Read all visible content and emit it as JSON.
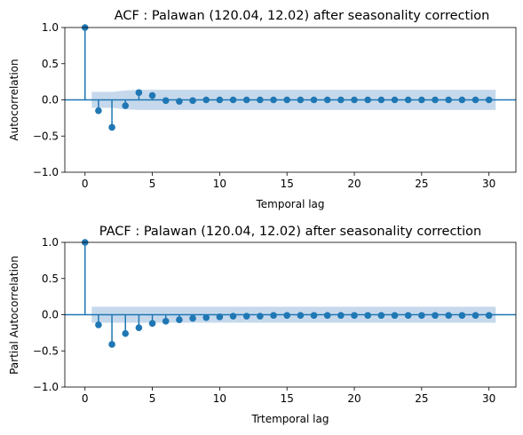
{
  "colors": {
    "stem": "#1f77b4",
    "band": "#c6d9ec",
    "axis": "#000000"
  },
  "chart_data": [
    {
      "type": "stem",
      "title": "ACF : Palawan (120.04, 12.02) after seasonality correction",
      "xlabel": "Temporal lag",
      "ylabel": "Autocorrelation",
      "xlim": [
        -1.5,
        32
      ],
      "ylim": [
        -1.0,
        1.0
      ],
      "xticks": [
        0,
        5,
        10,
        15,
        20,
        25,
        30
      ],
      "xtick_labels": [
        "0",
        "5",
        "10",
        "15",
        "20",
        "25",
        "30"
      ],
      "yticks": [
        1.0,
        0.5,
        0.0,
        -0.5,
        -1.0
      ],
      "ytick_labels": [
        "1.0",
        "0.5",
        "0.0",
        "−0.5",
        "−1.0"
      ],
      "x": [
        0,
        1,
        2,
        3,
        4,
        5,
        6,
        7,
        8,
        9,
        10,
        11,
        12,
        13,
        14,
        15,
        16,
        17,
        18,
        19,
        20,
        21,
        22,
        23,
        24,
        25,
        26,
        27,
        28,
        29,
        30
      ],
      "values": [
        1.0,
        -0.15,
        -0.38,
        -0.08,
        0.1,
        0.06,
        -0.01,
        -0.02,
        -0.01,
        0.0,
        0.0,
        0.0,
        0.0,
        0.0,
        0.0,
        0.0,
        0.0,
        0.0,
        0.0,
        0.0,
        0.0,
        0.0,
        0.0,
        0.0,
        0.0,
        0.0,
        0.0,
        0.0,
        0.0,
        0.0,
        0.0
      ],
      "confidence_band": [
        0.0,
        0.11,
        0.11,
        0.13,
        0.14,
        0.14,
        0.14,
        0.14,
        0.14,
        0.14,
        0.14,
        0.14,
        0.14,
        0.14,
        0.14,
        0.14,
        0.14,
        0.14,
        0.14,
        0.14,
        0.14,
        0.14,
        0.14,
        0.14,
        0.14,
        0.14,
        0.14,
        0.14,
        0.14,
        0.14,
        0.14
      ]
    },
    {
      "type": "stem",
      "title": "PACF : Palawan (120.04, 12.02) after seasonality correction",
      "xlabel": "Trtemporal lag",
      "ylabel": "Partial Autocorrelation",
      "xlim": [
        -1.5,
        32
      ],
      "ylim": [
        -1.0,
        1.0
      ],
      "xticks": [
        0,
        5,
        10,
        15,
        20,
        25,
        30
      ],
      "xtick_labels": [
        "0",
        "5",
        "10",
        "15",
        "20",
        "25",
        "30"
      ],
      "yticks": [
        1.0,
        0.5,
        0.0,
        -0.5,
        -1.0
      ],
      "ytick_labels": [
        "1.0",
        "0.5",
        "0.0",
        "−0.5",
        "−1.0"
      ],
      "x": [
        0,
        1,
        2,
        3,
        4,
        5,
        6,
        7,
        8,
        9,
        10,
        11,
        12,
        13,
        14,
        15,
        16,
        17,
        18,
        19,
        20,
        21,
        22,
        23,
        24,
        25,
        26,
        27,
        28,
        29,
        30
      ],
      "values": [
        1.0,
        -0.14,
        -0.41,
        -0.26,
        -0.18,
        -0.12,
        -0.09,
        -0.07,
        -0.05,
        -0.04,
        -0.03,
        -0.02,
        -0.02,
        -0.02,
        -0.01,
        -0.01,
        -0.01,
        -0.01,
        -0.01,
        -0.01,
        -0.01,
        -0.01,
        -0.01,
        -0.01,
        -0.01,
        -0.01,
        -0.01,
        -0.01,
        -0.01,
        -0.01,
        -0.01
      ],
      "confidence_band": [
        0.0,
        0.11,
        0.11,
        0.11,
        0.11,
        0.11,
        0.11,
        0.11,
        0.11,
        0.11,
        0.11,
        0.11,
        0.11,
        0.11,
        0.11,
        0.11,
        0.11,
        0.11,
        0.11,
        0.11,
        0.11,
        0.11,
        0.11,
        0.11,
        0.11,
        0.11,
        0.11,
        0.11,
        0.11,
        0.11,
        0.11
      ]
    }
  ]
}
